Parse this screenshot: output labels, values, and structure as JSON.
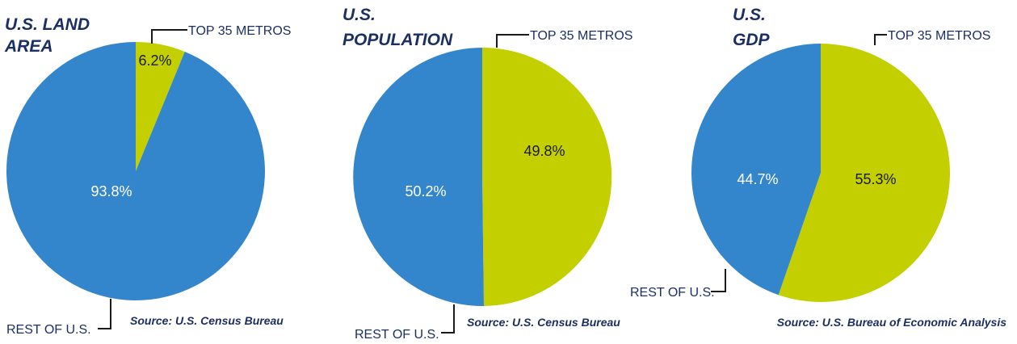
{
  "colors": {
    "metros": "#c4cf00",
    "rest": "#3486cc",
    "title": "#1c2f63"
  },
  "chart_data": [
    {
      "type": "pie",
      "title_lines": [
        "U.S. LAND",
        "AREA"
      ],
      "slices": [
        {
          "label": "TOP 35 METROS",
          "value": 6.2,
          "value_label": "6.2%",
          "color": "#c4cf00"
        },
        {
          "label": "REST OF U.S.",
          "value": 93.8,
          "value_label": "93.8%",
          "color": "#3486cc"
        }
      ],
      "source": "Source: U.S. Census Bureau"
    },
    {
      "type": "pie",
      "title_lines": [
        "U.S.",
        "POPULATION"
      ],
      "slices": [
        {
          "label": "TOP 35 METROS",
          "value": 49.8,
          "value_label": "49.8%",
          "color": "#c4cf00"
        },
        {
          "label": "REST OF U.S.",
          "value": 50.2,
          "value_label": "50.2%",
          "color": "#3486cc"
        }
      ],
      "source": "Source: U.S. Census Bureau"
    },
    {
      "type": "pie",
      "title_lines": [
        "U.S.",
        "GDP"
      ],
      "slices": [
        {
          "label": "TOP 35 METROS",
          "value": 55.3,
          "value_label": "55.3%",
          "color": "#c4cf00"
        },
        {
          "label": "REST OF U.S.",
          "value": 44.7,
          "value_label": "44.7%",
          "color": "#3486cc"
        }
      ],
      "source": "Source: U.S. Bureau of Economic Analysis"
    }
  ]
}
